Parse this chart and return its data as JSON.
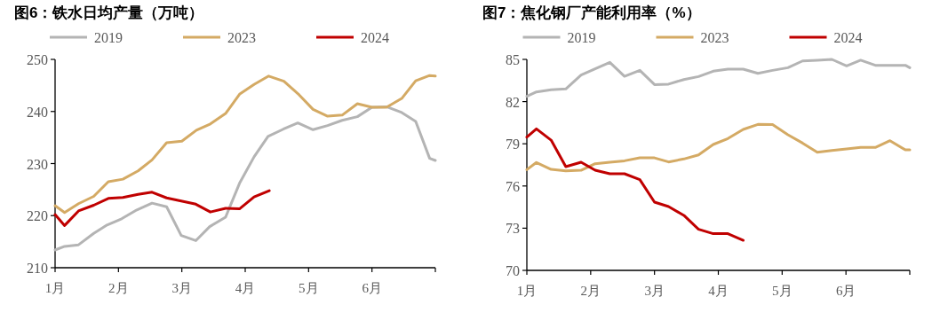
{
  "chart_data": [
    {
      "type": "line",
      "title": "图6：铁水日均产量（万吨）",
      "legend": "top",
      "xlim": [
        1,
        7
      ],
      "ylim": [
        210,
        250
      ],
      "xticks": [
        {
          "value": 1,
          "label": "1月"
        },
        {
          "value": 2,
          "label": "2月"
        },
        {
          "value": 3,
          "label": "3月"
        },
        {
          "value": 4,
          "label": "4月"
        },
        {
          "value": 5,
          "label": "5月"
        },
        {
          "value": 6,
          "label": "6月"
        },
        {
          "value": 7,
          "label": null
        }
      ],
      "yticks": [
        210,
        220,
        230,
        240,
        250
      ],
      "series": [
        {
          "name": "2019",
          "color": "#b4b4b4",
          "x": [
            1.0,
            1.15,
            1.37,
            1.61,
            1.82,
            2.05,
            2.29,
            2.53,
            2.76,
            2.99,
            3.22,
            3.44,
            3.69,
            3.91,
            4.14,
            4.36,
            4.6,
            4.83,
            5.07,
            5.3,
            5.53,
            5.77,
            6.0,
            6.23,
            6.47,
            6.69,
            6.91,
            7.0
          ],
          "values": [
            213.4,
            214.1,
            214.4,
            216.6,
            218.2,
            219.4,
            221.1,
            222.4,
            221.7,
            216.2,
            215.2,
            217.9,
            219.7,
            226.2,
            231.3,
            235.2,
            236.6,
            237.8,
            236.5,
            237.3,
            238.3,
            239.0,
            240.8,
            240.9,
            239.8,
            238.1,
            231.0,
            230.6
          ]
        },
        {
          "name": "2023",
          "color": "#d4aa64",
          "x": [
            1.0,
            1.15,
            1.37,
            1.61,
            1.84,
            2.07,
            2.31,
            2.53,
            2.76,
            3.0,
            3.23,
            3.45,
            3.69,
            3.91,
            4.14,
            4.37,
            4.61,
            4.85,
            5.07,
            5.3,
            5.53,
            5.77,
            6.0,
            6.23,
            6.47,
            6.69,
            6.91,
            7.0
          ],
          "values": [
            221.9,
            220.6,
            222.3,
            223.7,
            226.5,
            227.0,
            228.6,
            230.7,
            234.0,
            234.3,
            236.4,
            237.6,
            239.6,
            243.3,
            245.2,
            246.8,
            245.8,
            243.2,
            240.4,
            239.1,
            239.3,
            241.5,
            240.8,
            240.8,
            242.5,
            245.9,
            246.9,
            246.8
          ]
        },
        {
          "name": "2024",
          "color": "#c00000",
          "x": [
            1.0,
            1.15,
            1.37,
            1.61,
            1.84,
            2.07,
            2.31,
            2.53,
            2.76,
            2.99,
            3.22,
            3.45,
            3.69,
            3.91,
            4.14,
            4.38
          ],
          "values": [
            220.2,
            218.1,
            220.9,
            222.0,
            223.3,
            223.5,
            224.1,
            224.5,
            223.4,
            222.8,
            222.2,
            220.7,
            221.4,
            221.3,
            223.6,
            224.8
          ]
        }
      ]
    },
    {
      "type": "line",
      "title": "图7：焦化钢厂产能利用率（%）",
      "legend": "top",
      "xlim": [
        1,
        7
      ],
      "ylim": [
        70,
        85
      ],
      "xticks": [
        {
          "value": 1,
          "label": "1月"
        },
        {
          "value": 2,
          "label": "2月"
        },
        {
          "value": 3,
          "label": "3月"
        },
        {
          "value": 4,
          "label": "4月"
        },
        {
          "value": 5,
          "label": "5月"
        },
        {
          "value": 6,
          "label": "6月"
        },
        {
          "value": 7,
          "label": null
        }
      ],
      "yticks": [
        70,
        73,
        76,
        79,
        82,
        85
      ],
      "series": [
        {
          "name": "2019",
          "color": "#b4b4b4",
          "x": [
            1.0,
            1.15,
            1.38,
            1.61,
            1.85,
            2.07,
            2.3,
            2.53,
            2.77,
            3.0,
            3.22,
            3.46,
            3.69,
            3.92,
            4.15,
            4.39,
            4.62,
            4.85,
            5.09,
            5.32,
            5.55,
            5.78,
            6.01,
            6.23,
            6.46,
            6.69,
            6.93,
            7.0
          ],
          "values": [
            82.37,
            82.69,
            82.84,
            82.9,
            83.89,
            84.33,
            84.79,
            83.8,
            84.22,
            83.21,
            83.24,
            83.57,
            83.78,
            84.16,
            84.31,
            84.31,
            84.01,
            84.22,
            84.41,
            84.89,
            84.94,
            85.0,
            84.54,
            84.94,
            84.58,
            84.58,
            84.58,
            84.41
          ]
        },
        {
          "name": "2023",
          "color": "#d4aa64",
          "x": [
            1.0,
            1.15,
            1.38,
            1.61,
            1.85,
            2.07,
            2.3,
            2.53,
            2.77,
            3.0,
            3.22,
            3.46,
            3.69,
            3.92,
            4.15,
            4.39,
            4.62,
            4.85,
            5.09,
            5.32,
            5.55,
            5.78,
            6.01,
            6.23,
            6.46,
            6.69,
            6.93,
            7.0
          ],
          "values": [
            77.16,
            77.67,
            77.18,
            77.08,
            77.12,
            77.58,
            77.69,
            77.79,
            78.0,
            78.0,
            77.71,
            77.92,
            78.21,
            78.95,
            79.37,
            80.02,
            80.38,
            80.36,
            79.64,
            79.05,
            78.4,
            78.53,
            78.63,
            78.74,
            78.74,
            79.22,
            78.57,
            78.57
          ]
        },
        {
          "name": "2024",
          "color": "#c00000",
          "x": [
            1.0,
            1.15,
            1.38,
            1.61,
            1.85,
            2.07,
            2.3,
            2.53,
            2.77,
            3.0,
            3.22,
            3.46,
            3.69,
            3.92,
            4.15,
            4.39
          ],
          "values": [
            79.47,
            80.06,
            79.26,
            77.37,
            77.69,
            77.12,
            76.87,
            76.87,
            76.45,
            74.85,
            74.54,
            73.91,
            72.92,
            72.61,
            72.61,
            72.14
          ]
        }
      ]
    }
  ]
}
